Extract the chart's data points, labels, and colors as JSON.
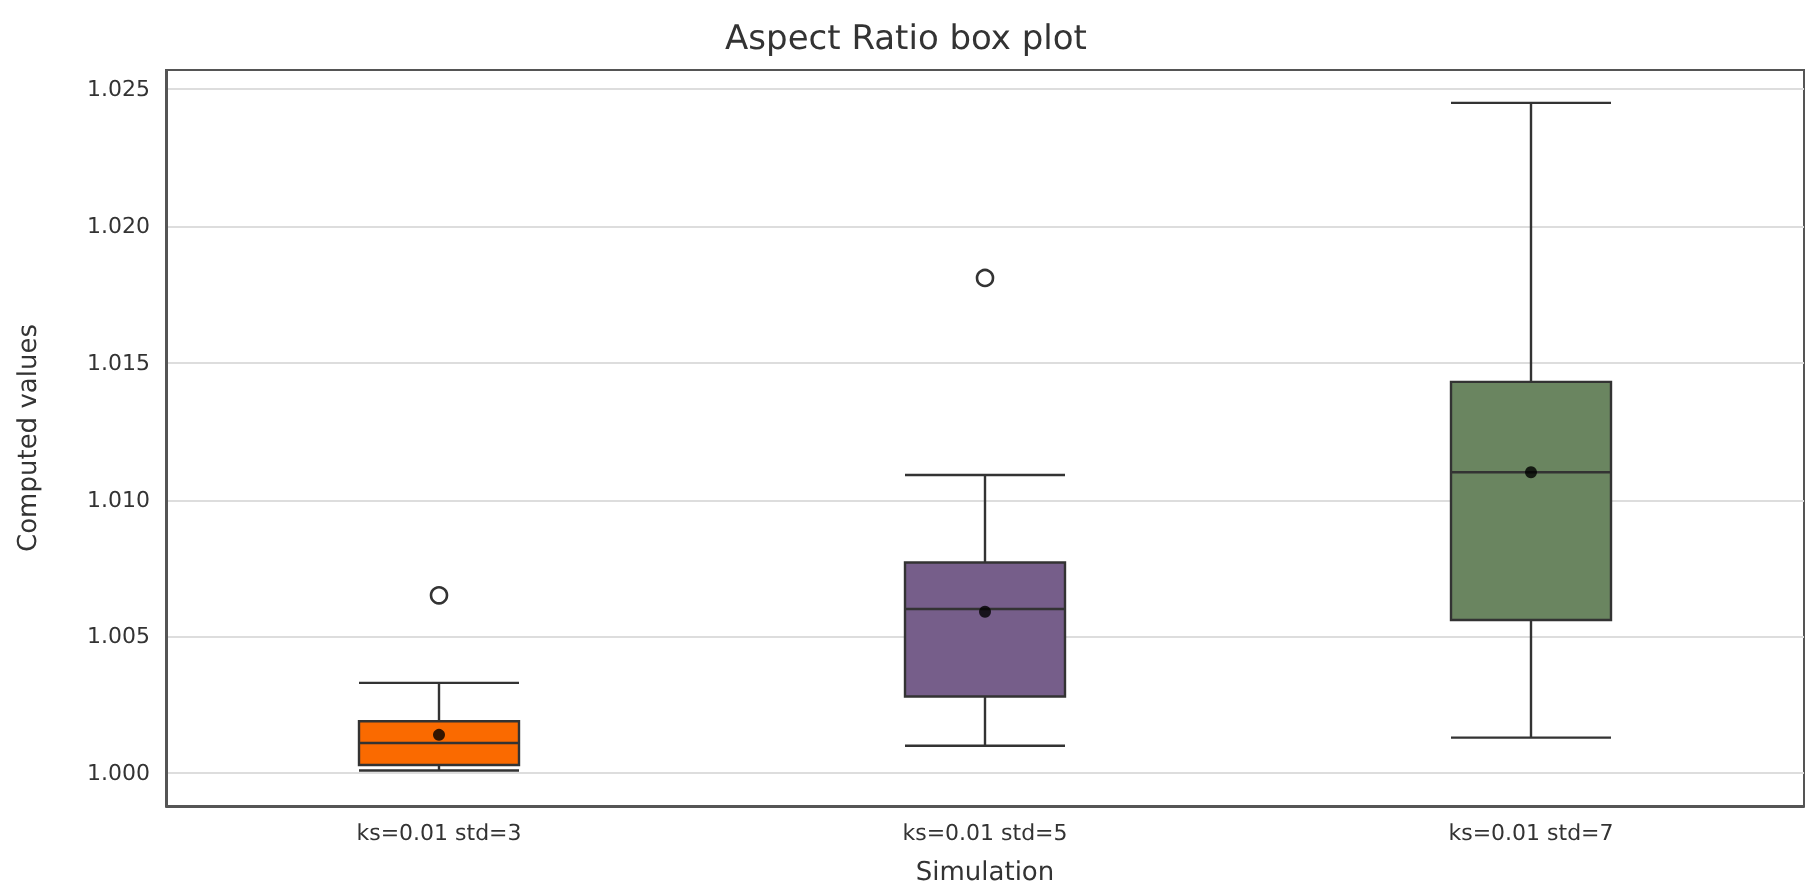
{
  "chart_data": {
    "type": "box",
    "title": "Aspect Ratio box plot",
    "xlabel": "Simulation",
    "ylabel": "Computed values",
    "categories": [
      "ks=0.01 std=3",
      "ks=0.01 std=5",
      "ks=0.01 std=7"
    ],
    "colors": [
      "#fa6a00",
      "#765e8a",
      "#6a8560"
    ],
    "boxes": [
      {
        "low": 1.0001,
        "q1": 1.0003,
        "median": 1.0011,
        "q3": 1.0019,
        "high": 1.0033,
        "mean": 1.0014,
        "outliers": [
          1.0065
        ]
      },
      {
        "low": 1.001,
        "q1": 1.0028,
        "median": 1.006,
        "q3": 1.0077,
        "high": 1.0109,
        "mean": 1.0059,
        "outliers": [
          1.0181
        ]
      },
      {
        "low": 1.0013,
        "q1": 1.0056,
        "median": 1.011,
        "q3": 1.0143,
        "high": 1.0245,
        "mean": 1.011
      }
    ],
    "ylim": [
      0.9988,
      1.0257
    ],
    "yticks": [
      {
        "value": 1,
        "label": "1.000"
      },
      {
        "value": 1.005,
        "label": "1.005"
      },
      {
        "value": 1.01,
        "label": "1.010"
      },
      {
        "value": 1.015,
        "label": "1.015"
      },
      {
        "value": 1.02,
        "label": "1.020"
      },
      {
        "value": 1.025,
        "label": "1.025"
      }
    ],
    "grid": "y",
    "legend": false
  }
}
